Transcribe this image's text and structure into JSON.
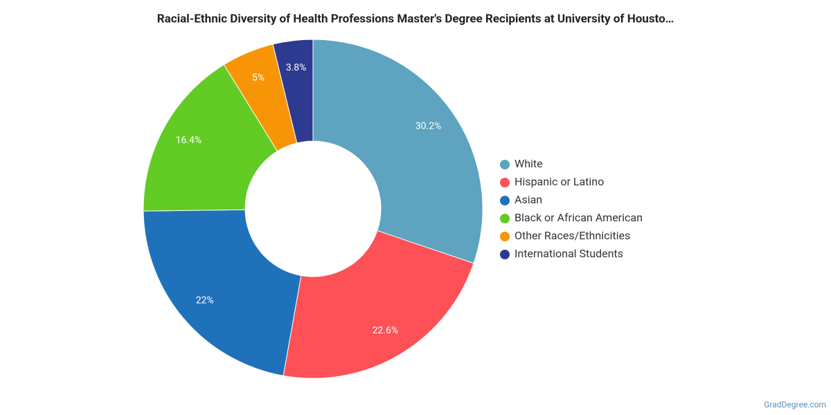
{
  "chart_data": {
    "type": "donut",
    "title": "Racial-Ethnic Diversity of Health Professions Master's Degree Recipients at University of Housto…",
    "categories": [
      "White",
      "Hispanic or Latino",
      "Asian",
      "Black or African American",
      "Other Races/Ethnicities",
      "International Students"
    ],
    "values": [
      30.2,
      22.6,
      22,
      16.4,
      5,
      3.8
    ],
    "value_labels": [
      "30.2%",
      "22.6%",
      "22%",
      "16.4%",
      "5%",
      "3.8%"
    ],
    "colors": [
      "#5ea3bf",
      "#fd5057",
      "#1f72b9",
      "#62cb24",
      "#f79506",
      "#2e3990"
    ],
    "legend": "right",
    "credit": "GradDegree.com"
  }
}
